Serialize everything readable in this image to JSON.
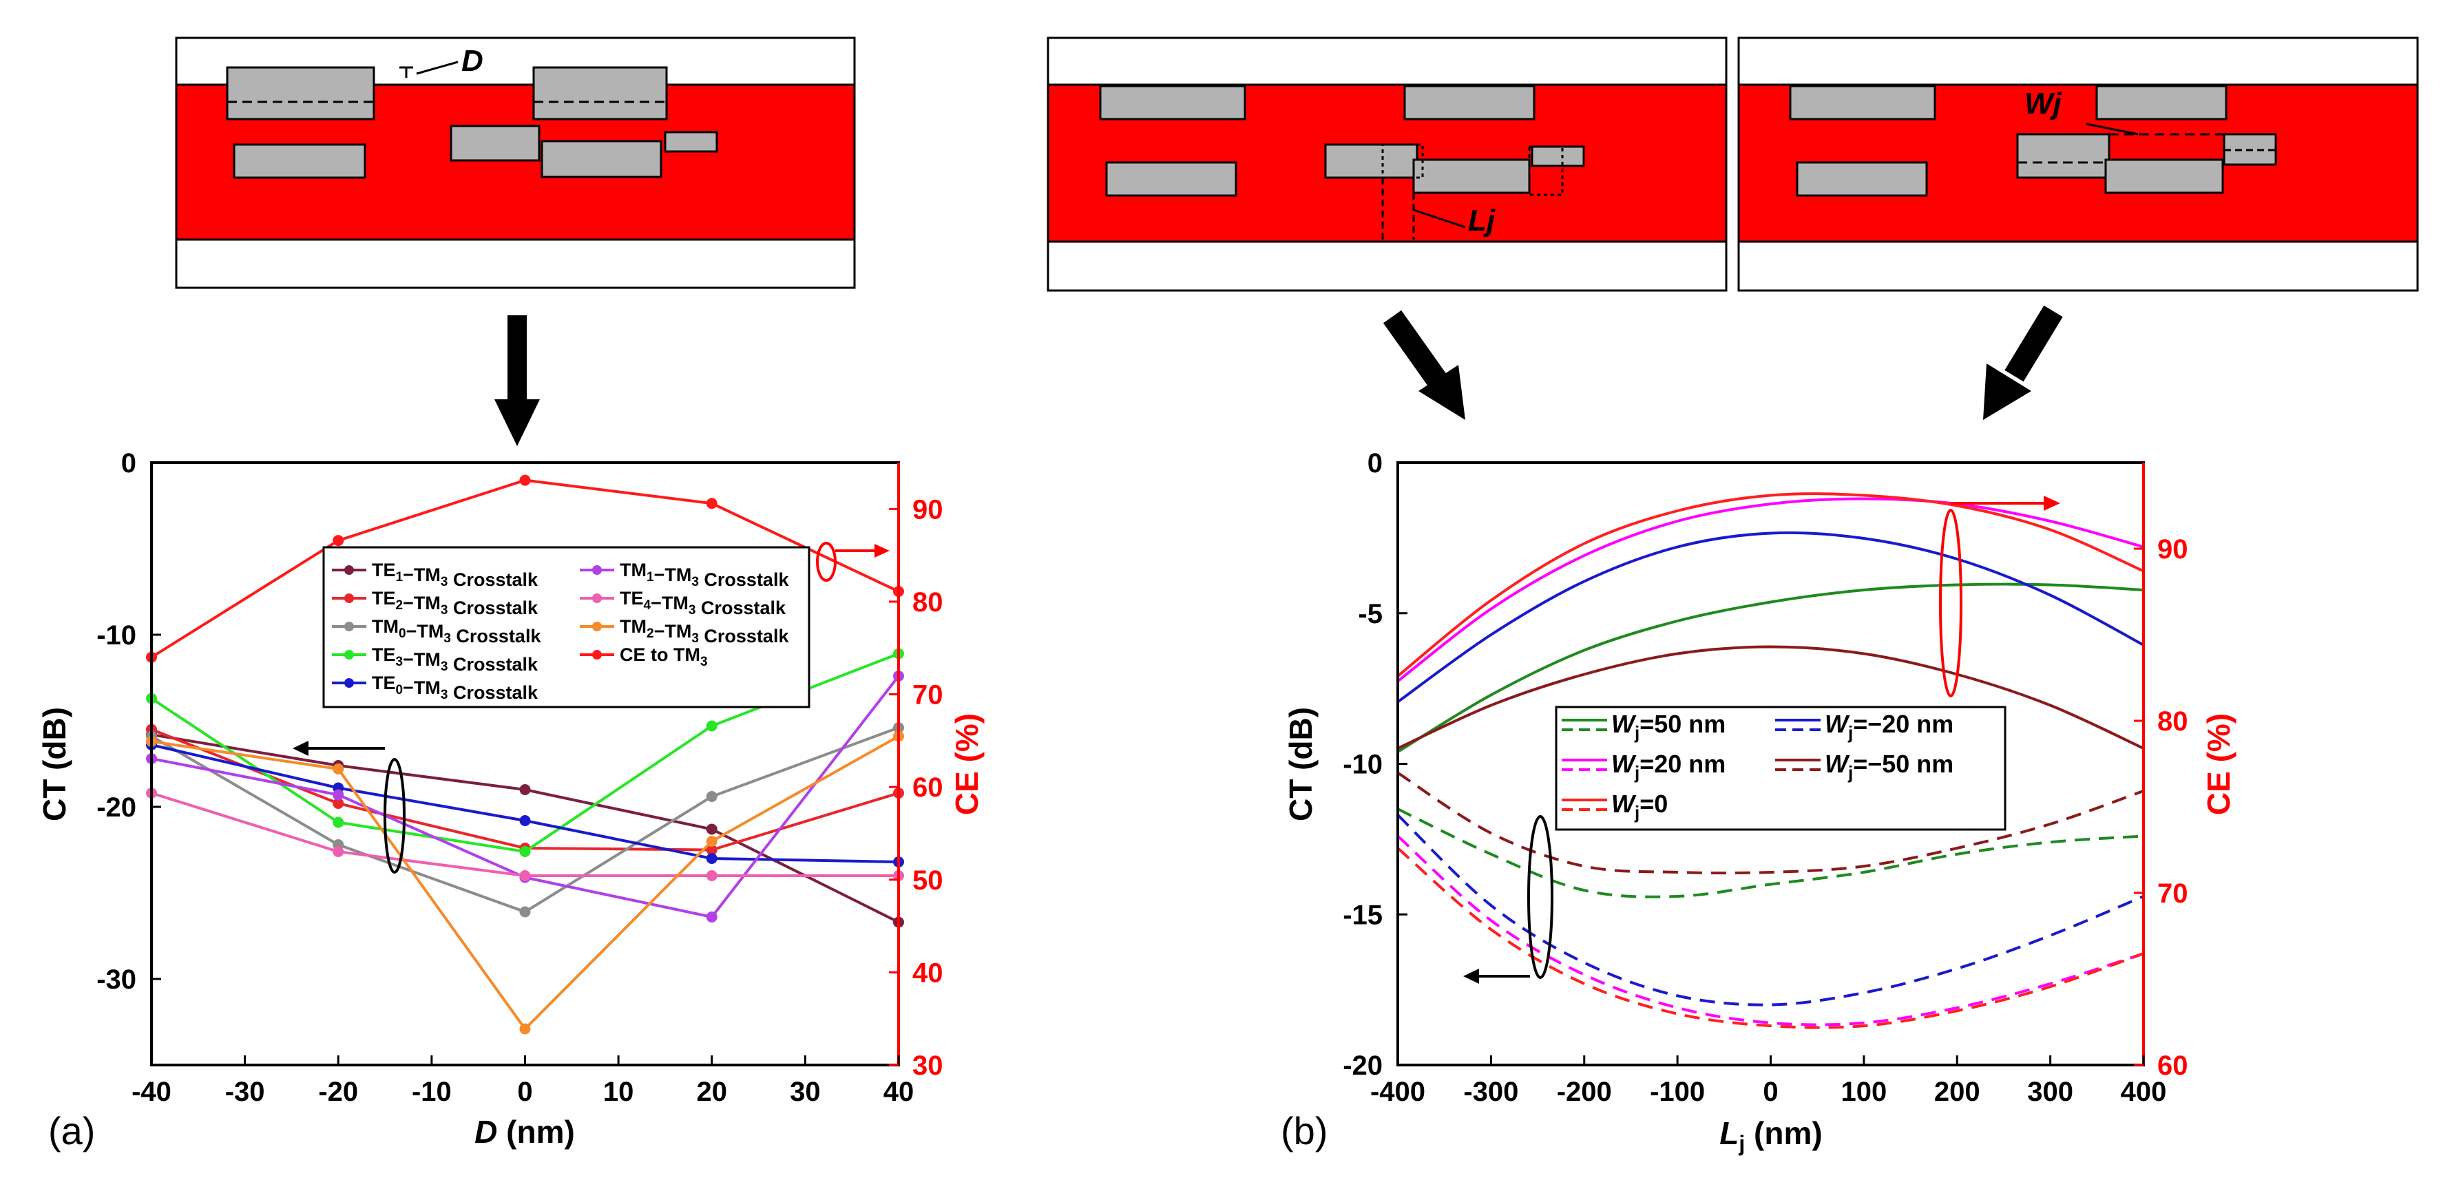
{
  "panel_labels": {
    "a": "(a)",
    "b": "(b)"
  },
  "diagram_labels": {
    "d": "D",
    "wj": "Wj",
    "lj": "Lj"
  },
  "colors": {
    "core": "#ff0000",
    "block": "#b3b3b3",
    "right_axis": "#ff0000"
  },
  "chart_data": [
    {
      "type": "line",
      "panel": "(a)",
      "x": [
        -40,
        -20,
        0,
        20,
        40
      ],
      "xlabel": "D (nm)",
      "ylabel": "CT (dB)",
      "y2label": "CE (%)",
      "xlim": [
        -40,
        40
      ],
      "ylim": [
        -35,
        0
      ],
      "y2lim": [
        30,
        95
      ],
      "xticks": [
        "-40",
        "-30",
        "-20",
        "-10",
        "0",
        "10",
        "20",
        "30",
        "40"
      ],
      "yticks": [
        "0",
        "-10",
        "-20",
        "-30"
      ],
      "y2ticks": [
        "90",
        "80",
        "70",
        "60",
        "50",
        "40",
        "30"
      ],
      "series": [
        {
          "name": "TE1−TM3 Crosstalk",
          "color": "#7b1f3c",
          "axis": "left",
          "values": [
            -15.8,
            -17.6,
            -19.0,
            -21.3,
            -26.7
          ]
        },
        {
          "name": "TE2−TM3 Crosstalk",
          "color": "#e8262b",
          "axis": "left",
          "values": [
            -15.5,
            -19.8,
            -22.4,
            -22.5,
            -19.2
          ]
        },
        {
          "name": "TM0−TM3 Crosstalk",
          "color": "#8c8c8c",
          "axis": "left",
          "values": [
            -15.9,
            -22.2,
            -26.1,
            -19.4,
            -15.4
          ]
        },
        {
          "name": "TE3−TM3 Crosstalk",
          "color": "#27e627",
          "axis": "left",
          "values": [
            -13.7,
            -20.9,
            -22.6,
            -15.3,
            -11.1
          ]
        },
        {
          "name": "TE0−TM3 Crosstalk",
          "color": "#1a1acc",
          "axis": "left",
          "values": [
            -16.4,
            -18.9,
            -20.8,
            -23.0,
            -23.2
          ]
        },
        {
          "name": "TM1−TM3 Crosstalk",
          "color": "#b040e8",
          "axis": "left",
          "values": [
            -17.2,
            -19.3,
            -24.1,
            -26.4,
            -12.4
          ]
        },
        {
          "name": "TE4−TM3 Crosstalk",
          "color": "#ef5fb0",
          "axis": "left",
          "values": [
            -19.2,
            -22.6,
            -24.0,
            -24.0,
            -24.0
          ]
        },
        {
          "name": "TM2−TM3 Crosstalk",
          "color": "#f58b2a",
          "axis": "left",
          "values": [
            -16.2,
            -17.8,
            -32.9,
            -22.0,
            -15.9
          ]
        },
        {
          "name": "CE to TM3",
          "color": "#ff1a1a",
          "axis": "right",
          "values": [
            74.0,
            86.6,
            93.1,
            90.6,
            81.1
          ]
        }
      ],
      "legend": {
        "placement": "top-center",
        "columns": 2
      }
    },
    {
      "type": "line",
      "panel": "(b)",
      "xlabel": "Lj (nm)",
      "ylabel": "CT (dB)",
      "y2label": "CE (%)",
      "xlim": [
        -400,
        400
      ],
      "ylim": [
        -20,
        0
      ],
      "y2lim": [
        60,
        95
      ],
      "xticks": [
        "-400",
        "-300",
        "-200",
        "-100",
        "0",
        "100",
        "200",
        "300",
        "400"
      ],
      "yticks": [
        "0",
        "-5",
        "-10",
        "-15",
        "-20"
      ],
      "y2ticks": [
        "90",
        "80",
        "70",
        "60"
      ],
      "x": [
        -400,
        -300,
        -200,
        -100,
        0,
        100,
        200,
        300,
        400
      ],
      "series": [
        {
          "name": "Wj=50 nm",
          "label": "Wj=50 nm",
          "color": "#1f8a1f",
          "ce": [
            78.2,
            81.5,
            84.1,
            85.8,
            86.9,
            87.6,
            87.9,
            87.9,
            87.6
          ],
          "ct": [
            -11.5,
            -13.0,
            -14.2,
            -14.4,
            -14.0,
            -13.6,
            -13.0,
            -12.6,
            -12.4
          ]
        },
        {
          "name": "Wj=20 nm",
          "label": "Wj=20 nm",
          "color": "#ff00ff",
          "ce": [
            82.3,
            86.5,
            89.6,
            91.6,
            92.6,
            92.9,
            92.6,
            91.6,
            90.1
          ],
          "ct": [
            -12.4,
            -15.2,
            -17.0,
            -18.1,
            -18.6,
            -18.6,
            -18.1,
            -17.3,
            -16.3
          ]
        },
        {
          "name": "Wj=0",
          "label": "Wj=0",
          "color": "#ff2020",
          "ce": [
            82.6,
            87.0,
            90.3,
            92.2,
            93.1,
            93.1,
            92.5,
            91.1,
            88.7
          ],
          "ct": [
            -12.8,
            -15.5,
            -17.3,
            -18.3,
            -18.7,
            -18.7,
            -18.2,
            -17.4,
            -16.3
          ]
        },
        {
          "name": "Wj=−20 nm",
          "label": "Wj=−20 nm",
          "color": "#1a1acc",
          "ce": [
            81.1,
            85.0,
            88.1,
            90.1,
            90.9,
            90.6,
            89.4,
            87.3,
            84.4
          ],
          "ct": [
            -11.7,
            -14.7,
            -16.6,
            -17.7,
            -18.0,
            -17.6,
            -16.8,
            -15.7,
            -14.4
          ]
        },
        {
          "name": "Wj=−50 nm",
          "label": "Wj=−50 nm",
          "color": "#8b1a1a",
          "ce": [
            78.4,
            80.9,
            82.7,
            83.9,
            84.3,
            83.9,
            82.7,
            80.9,
            78.4
          ],
          "ct": [
            -10.3,
            -12.3,
            -13.4,
            -13.6,
            -13.6,
            -13.4,
            -12.8,
            -12.0,
            -10.9
          ]
        }
      ],
      "legend": {
        "placement": "center-left",
        "columns": 2
      }
    }
  ]
}
